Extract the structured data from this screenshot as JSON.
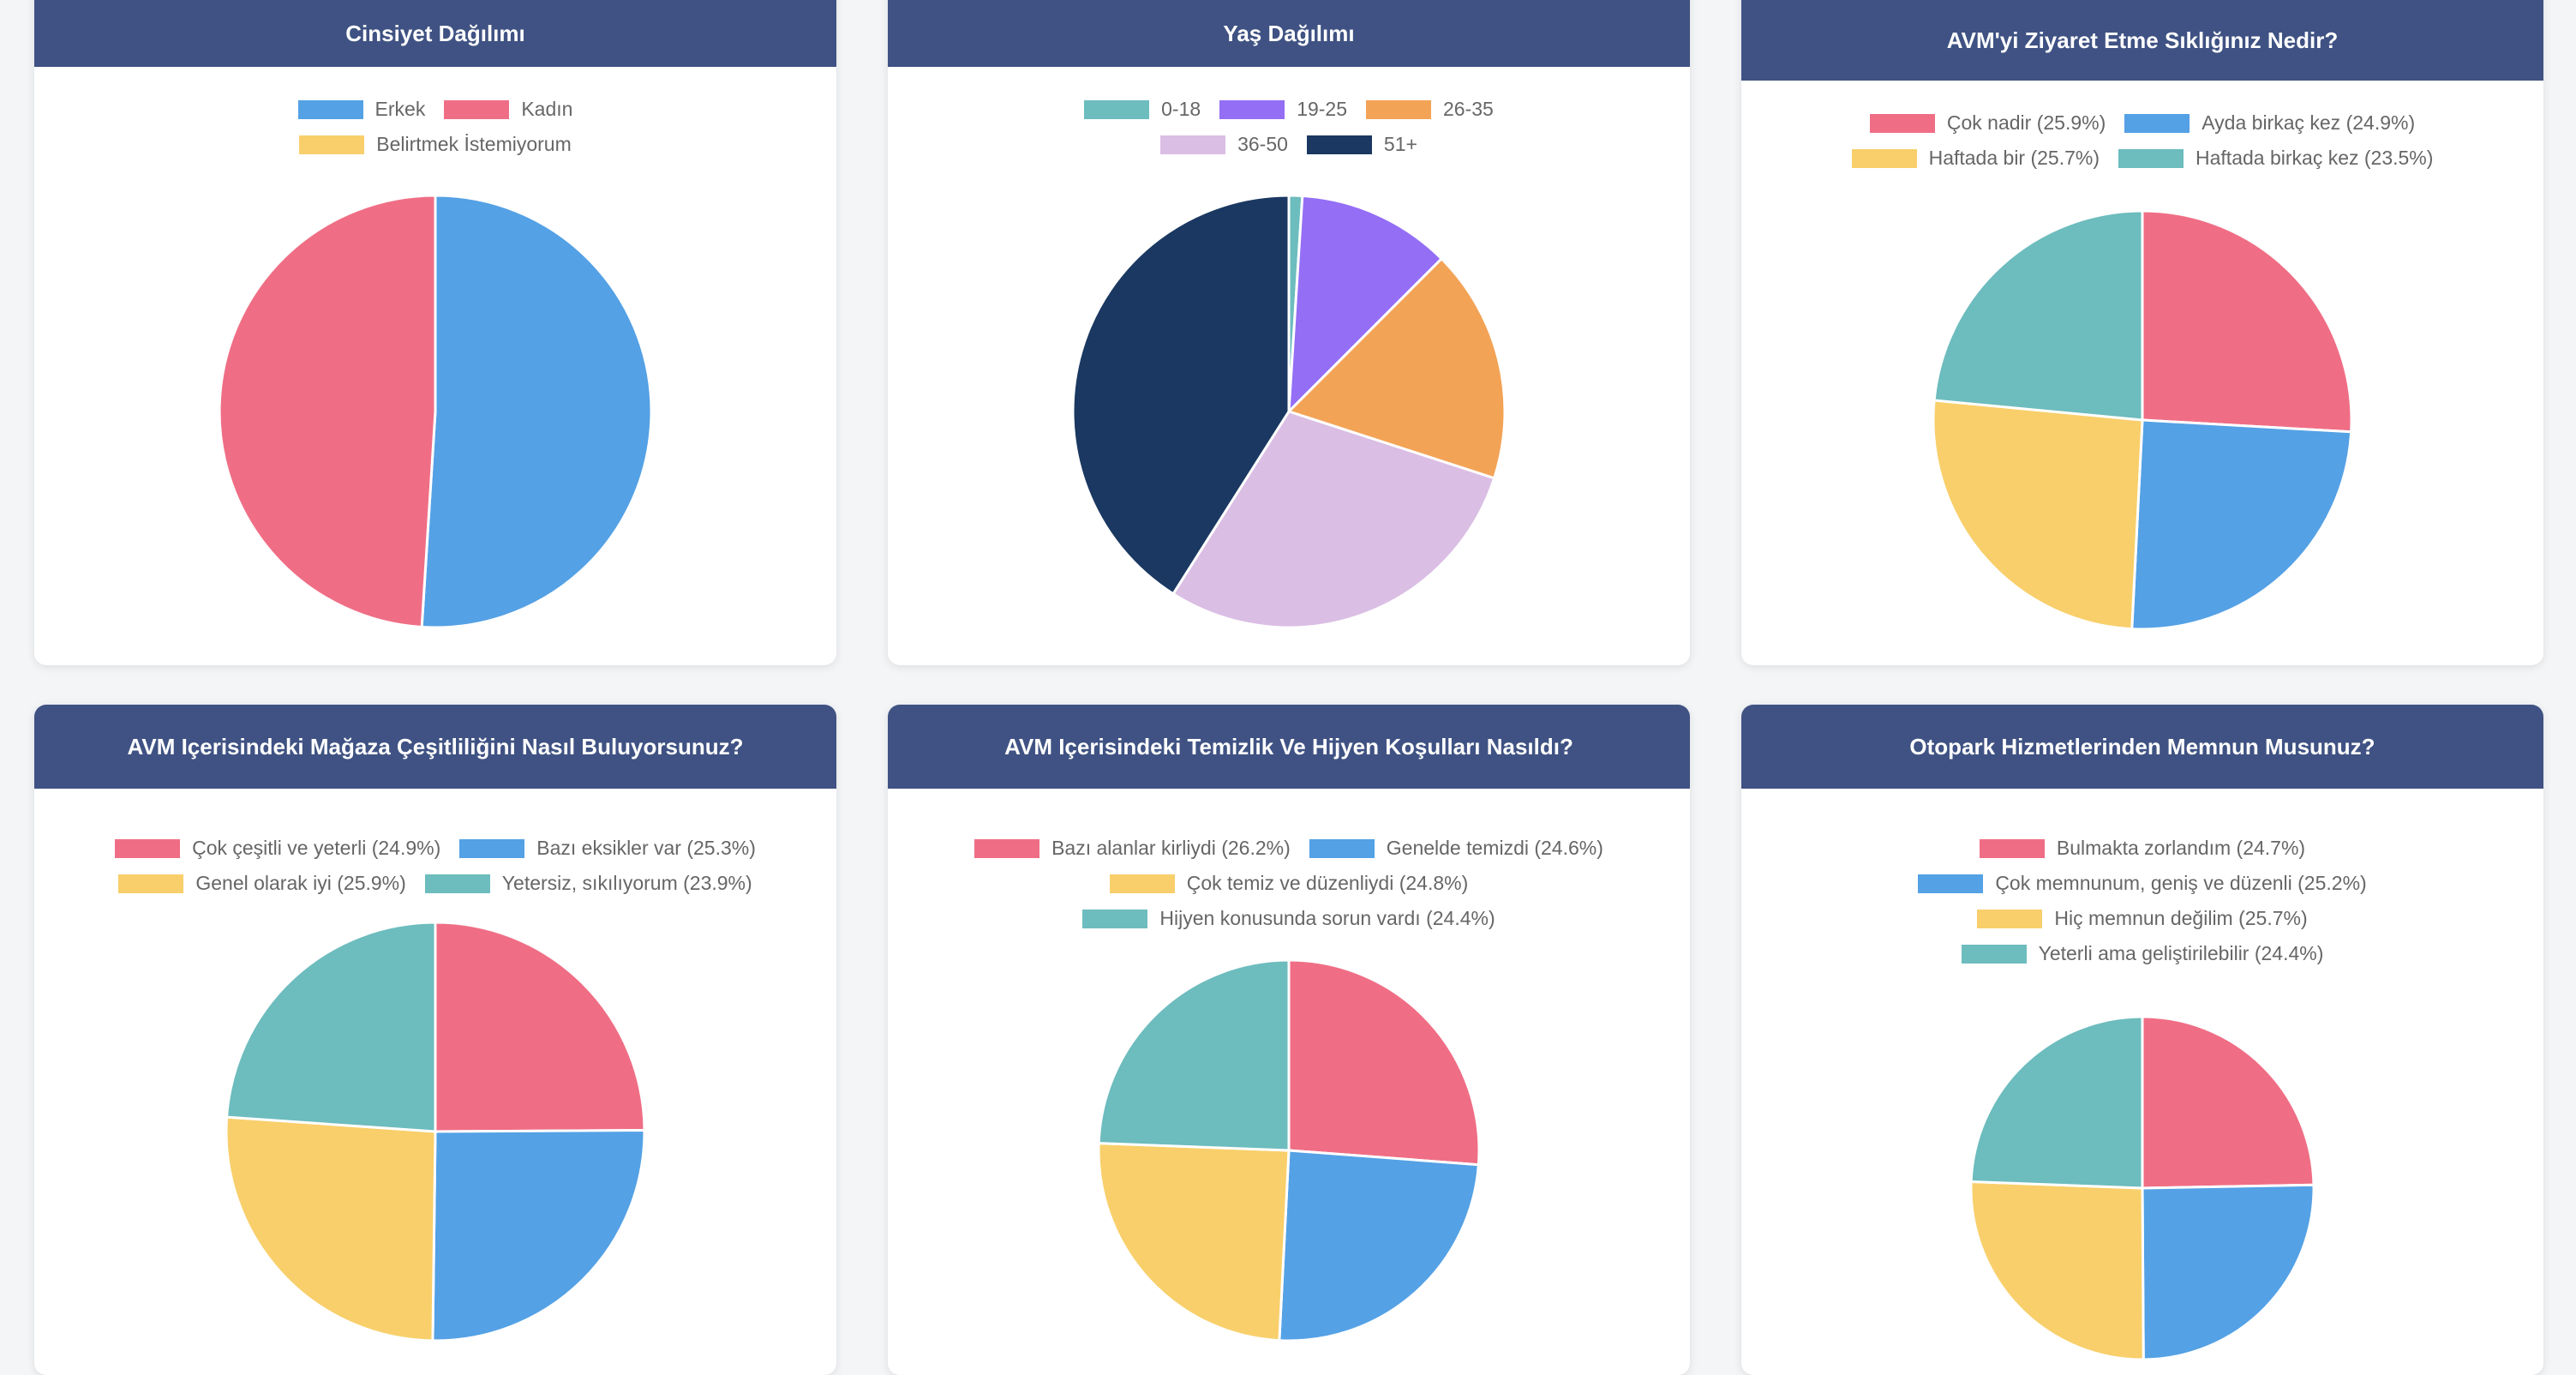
{
  "colors": {
    "header_bg": "#3f5283",
    "blue": "#54a1e5",
    "pink": "#ef6e85",
    "yellow": "#f8cf6b",
    "teal": "#6dbcbe",
    "purple": "#946ef5",
    "orange": "#f3a356",
    "lavender": "#dabee4",
    "navy": "#1a3861"
  },
  "chart_data": [
    {
      "type": "pie",
      "title": "Cinsiyet Dağılımı",
      "legend_position": "top",
      "slices": [
        {
          "label": "Erkek",
          "legend": "Erkek",
          "value": 51,
          "color": "#54a1e5"
        },
        {
          "label": "Kadın",
          "legend": "Kadın",
          "value": 49,
          "color": "#ef6e85"
        },
        {
          "label": "Belirtmek İstemiyorum",
          "legend": "Belirtmek İstemiyorum",
          "value": 0,
          "color": "#f8cf6b"
        }
      ]
    },
    {
      "type": "pie",
      "title": "Yaş Dağılımı",
      "legend_position": "top",
      "slices": [
        {
          "label": "0-18",
          "legend": "0-18",
          "value": 1,
          "color": "#6dbcbe"
        },
        {
          "label": "19-25",
          "legend": "19-25",
          "value": 11.5,
          "color": "#946ef5"
        },
        {
          "label": "26-35",
          "legend": "26-35",
          "value": 17.5,
          "color": "#f3a356"
        },
        {
          "label": "36-50",
          "legend": "36-50",
          "value": 29,
          "color": "#dabee4"
        },
        {
          "label": "51+",
          "legend": "51+",
          "value": 41,
          "color": "#1a3861"
        }
      ]
    },
    {
      "type": "pie",
      "title": "AVM'yi Ziyaret Etme Sıklığınız Nedir?",
      "legend_position": "top",
      "slices": [
        {
          "label": "Çok nadir",
          "legend": "Çok nadir (25.9%)",
          "value": 25.9,
          "color": "#ef6e85"
        },
        {
          "label": "Ayda birkaç kez",
          "legend": "Ayda birkaç kez (24.9%)",
          "value": 24.9,
          "color": "#54a1e5"
        },
        {
          "label": "Haftada bir",
          "legend": "Haftada bir (25.7%)",
          "value": 25.7,
          "color": "#f8cf6b"
        },
        {
          "label": "Haftada birkaç kez",
          "legend": "Haftada birkaç kez (23.5%)",
          "value": 23.5,
          "color": "#6dbcbe"
        }
      ]
    },
    {
      "type": "pie",
      "title": "AVM Içerisindeki Mağaza Çeşitliliğini Nasıl Buluyorsunuz?",
      "legend_position": "top",
      "slices": [
        {
          "label": "Çok çeşitli ve yeterli",
          "legend": "Çok çeşitli ve yeterli (24.9%)",
          "value": 24.9,
          "color": "#ef6e85"
        },
        {
          "label": "Bazı eksikler var",
          "legend": "Bazı eksikler var (25.3%)",
          "value": 25.3,
          "color": "#54a1e5"
        },
        {
          "label": "Genel olarak iyi",
          "legend": "Genel olarak iyi (25.9%)",
          "value": 25.9,
          "color": "#f8cf6b"
        },
        {
          "label": "Yetersiz, sıkılıyorum",
          "legend": "Yetersiz, sıkılıyorum (23.9%)",
          "value": 23.9,
          "color": "#6dbcbe"
        }
      ]
    },
    {
      "type": "pie",
      "title": "AVM Içerisindeki Temizlik Ve Hijyen Koşulları Nasıldı?",
      "legend_position": "top",
      "slices": [
        {
          "label": "Bazı alanlar kirliydi",
          "legend": "Bazı alanlar kirliydi (26.2%)",
          "value": 26.2,
          "color": "#ef6e85"
        },
        {
          "label": "Genelde temizdi",
          "legend": "Genelde temizdi (24.6%)",
          "value": 24.6,
          "color": "#54a1e5"
        },
        {
          "label": "Çok temiz ve düzenliydi",
          "legend": "Çok temiz ve düzenliydi (24.8%)",
          "value": 24.8,
          "color": "#f8cf6b"
        },
        {
          "label": "Hijyen konusunda sorun vardı",
          "legend": "Hijyen konusunda sorun vardı (24.4%)",
          "value": 24.4,
          "color": "#6dbcbe"
        }
      ]
    },
    {
      "type": "pie",
      "title": "Otopark Hizmetlerinden Memnun Musunuz?",
      "legend_position": "top",
      "slices": [
        {
          "label": "Bulmakta zorlandım",
          "legend": "Bulmakta zorlandım (24.7%)",
          "value": 24.7,
          "color": "#ef6e85"
        },
        {
          "label": "Çok memnunum, geniş ve düzenli",
          "legend": "Çok memnunum, geniş ve düzenli (25.2%)",
          "value": 25.2,
          "color": "#54a1e5"
        },
        {
          "label": "Hiç memnun değilim",
          "legend": "Hiç memnun değilim (25.7%)",
          "value": 25.7,
          "color": "#f8cf6b"
        },
        {
          "label": "Yeterli ama geliştirilebilir",
          "legend": "Yeterli ama geliştirilebilir (24.4%)",
          "value": 24.4,
          "color": "#6dbcbe"
        }
      ]
    }
  ]
}
